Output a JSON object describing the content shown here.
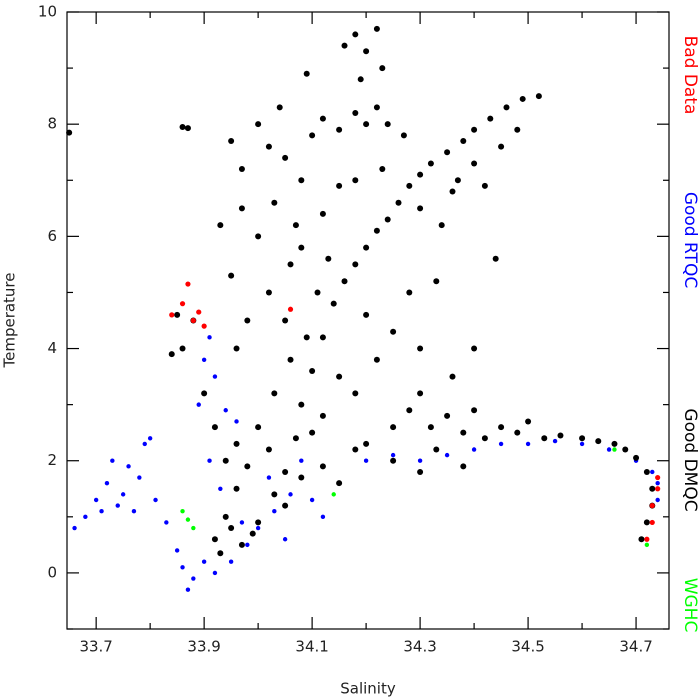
{
  "chart_data": {
    "type": "scatter",
    "x_label": "Salinity",
    "y_label": "Temperature",
    "xlim": [
      33.646,
      34.761
    ],
    "ylim": [
      -1,
      10
    ],
    "xticks": [
      33.7,
      33.9,
      34.1,
      34.3,
      34.5,
      34.7
    ],
    "yticks": [
      0,
      2,
      4,
      6,
      8,
      10
    ],
    "xminorticks": [
      33.8,
      34.0,
      34.2,
      34.4,
      34.6
    ],
    "yminorticks": [
      -1,
      1,
      3,
      5,
      7,
      9
    ],
    "legend": "right",
    "series": [
      {
        "name": "Bad Data",
        "color": "#ff0000",
        "x": [
          33.84,
          33.86,
          33.87,
          33.88,
          33.89,
          33.9,
          34.06,
          34.72,
          34.73,
          34.73,
          34.74,
          34.74
        ],
        "values": [
          4.6,
          4.8,
          5.15,
          4.5,
          4.65,
          4.4,
          4.7,
          0.6,
          0.9,
          1.2,
          1.5,
          1.7
        ]
      },
      {
        "name": "Good RTQC",
        "color": "#0000ff",
        "x": [
          33.66,
          33.68,
          33.7,
          33.72,
          33.73,
          33.75,
          33.77,
          33.78,
          33.79,
          33.8,
          33.76,
          33.74,
          33.81,
          33.71,
          33.83,
          33.85,
          33.86,
          33.88,
          33.87,
          33.9,
          33.92,
          33.95,
          33.98,
          34.0,
          34.03,
          34.06,
          34.1,
          33.97,
          33.93,
          33.91,
          33.89,
          33.9,
          33.91,
          33.92,
          33.94,
          33.96,
          34.02,
          34.08,
          34.2,
          34.25,
          34.3,
          34.35,
          34.4,
          34.45,
          34.5,
          34.55,
          34.6,
          34.65,
          34.7,
          34.73,
          34.74,
          34.74,
          34.12,
          34.05
        ],
        "values": [
          0.8,
          1.0,
          1.3,
          1.6,
          2.0,
          1.4,
          1.1,
          1.7,
          2.3,
          2.4,
          1.9,
          1.2,
          1.3,
          1.1,
          0.9,
          0.4,
          0.1,
          -0.1,
          -0.3,
          0.2,
          0.0,
          0.2,
          0.5,
          0.8,
          1.1,
          1.4,
          1.3,
          0.9,
          1.5,
          2.0,
          3.0,
          3.8,
          4.2,
          3.5,
          2.9,
          2.7,
          1.7,
          2.0,
          2.0,
          2.1,
          2.0,
          2.1,
          2.2,
          2.3,
          2.3,
          2.35,
          2.3,
          2.2,
          2.0,
          1.8,
          1.6,
          1.3,
          1.0,
          0.6
        ]
      },
      {
        "name": "Good DMQC",
        "color": "#000000",
        "x": [
          33.65,
          33.86,
          33.87,
          33.85,
          33.86,
          33.88,
          33.84,
          33.9,
          33.92,
          33.94,
          33.96,
          33.95,
          33.97,
          33.93,
          34.0,
          34.03,
          34.05,
          34.07,
          34.08,
          34.1,
          34.12,
          34.14,
          34.16,
          34.18,
          34.2,
          34.22,
          34.24,
          34.26,
          34.28,
          34.3,
          34.32,
          34.35,
          34.38,
          34.4,
          34.43,
          34.46,
          34.49,
          34.52,
          34.4,
          34.36,
          34.45,
          34.3,
          33.95,
          33.97,
          34.0,
          34.02,
          34.05,
          34.08,
          34.1,
          34.12,
          34.15,
          34.18,
          34.2,
          34.22,
          34.24,
          33.97,
          34.0,
          34.03,
          34.06,
          34.02,
          33.98,
          33.95,
          33.93,
          33.96,
          34.05,
          34.08,
          34.12,
          34.15,
          34.18,
          34.25,
          34.22,
          34.2,
          34.18,
          34.15,
          34.12,
          34.1,
          34.28,
          34.3,
          34.33,
          34.23,
          34.04,
          34.09,
          34.16,
          34.18,
          34.2,
          34.22,
          34.19,
          34.23,
          34.2,
          34.25,
          34.28,
          34.3,
          34.32,
          34.35,
          34.38,
          34.4,
          34.42,
          34.45,
          34.48,
          34.5,
          34.53,
          34.56,
          34.6,
          34.63,
          34.66,
          34.68,
          34.7,
          34.72,
          34.73,
          34.73,
          34.72,
          34.71,
          34.33,
          34.38,
          34.3,
          34.25,
          34.02,
          34.05,
          34.08,
          34.12,
          34.15,
          34.18,
          34.0,
          33.98,
          33.96,
          34.03,
          34.06,
          34.09,
          34.11,
          34.13,
          34.07,
          34.27,
          34.34,
          34.37,
          34.42,
          34.48,
          34.44,
          34.4,
          34.36,
          33.99,
          33.92,
          33.94
        ],
        "values": [
          7.85,
          7.95,
          7.93,
          4.6,
          4.0,
          4.5,
          3.9,
          3.2,
          2.6,
          2.0,
          1.5,
          0.8,
          0.5,
          0.35,
          0.9,
          1.4,
          1.8,
          2.4,
          3.0,
          3.6,
          4.2,
          4.8,
          5.2,
          5.5,
          5.8,
          6.1,
          6.3,
          6.6,
          6.9,
          7.1,
          7.3,
          7.5,
          7.7,
          7.9,
          8.1,
          8.3,
          8.45,
          8.5,
          7.3,
          6.8,
          7.6,
          6.5,
          7.7,
          7.2,
          8.0,
          7.6,
          7.4,
          7.0,
          7.8,
          8.1,
          7.9,
          8.2,
          8.0,
          8.3,
          8.0,
          6.5,
          6.0,
          6.6,
          5.5,
          5.0,
          4.5,
          5.3,
          6.2,
          4.0,
          4.5,
          5.8,
          6.4,
          6.9,
          7.0,
          4.3,
          3.8,
          4.6,
          3.2,
          3.5,
          2.8,
          2.5,
          5.0,
          4.0,
          5.2,
          7.2,
          8.3,
          8.9,
          9.4,
          9.6,
          9.3,
          9.7,
          8.8,
          9.0,
          2.3,
          2.6,
          2.9,
          3.2,
          2.6,
          2.8,
          2.5,
          2.9,
          2.4,
          2.6,
          2.5,
          2.7,
          2.4,
          2.45,
          2.4,
          2.35,
          2.3,
          2.2,
          2.05,
          1.8,
          1.5,
          1.2,
          0.9,
          0.6,
          2.2,
          1.9,
          1.8,
          2.0,
          2.2,
          1.2,
          1.7,
          1.9,
          1.6,
          2.2,
          2.6,
          1.9,
          2.3,
          3.2,
          3.8,
          4.2,
          5.0,
          5.6,
          6.2,
          7.8,
          6.2,
          7.0,
          6.9,
          7.9,
          5.6,
          4.0,
          3.5,
          0.7,
          0.6,
          1.0
        ]
      },
      {
        "name": "WGHC",
        "color": "#00ff00",
        "x": [
          33.86,
          33.87,
          33.88,
          34.14,
          34.66,
          34.72
        ],
        "values": [
          1.1,
          0.95,
          0.8,
          1.4,
          2.2,
          0.5
        ]
      }
    ]
  }
}
